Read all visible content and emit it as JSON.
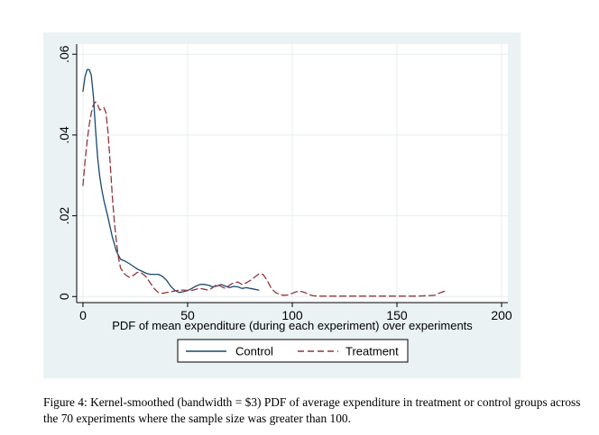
{
  "chart_data": {
    "type": "line",
    "title": "",
    "xlabel": "PDF of mean expenditure (during each experiment) over experiments",
    "ylabel": "",
    "xlim": [
      -3,
      203
    ],
    "ylim": [
      -0.0015,
      0.0625
    ],
    "x_ticks": [
      0,
      50,
      100,
      150,
      200
    ],
    "x_tick_labels": [
      "0",
      "50",
      "100",
      "150",
      "200"
    ],
    "y_ticks": [
      0,
      0.02,
      0.04,
      0.06
    ],
    "y_tick_labels": [
      "0",
      ".02",
      ".04",
      ".06"
    ],
    "grid": true,
    "legend_position": "bottom",
    "series": [
      {
        "name": "Control",
        "color": "#1a476f",
        "dash": "solid",
        "x": [
          0,
          1,
          2,
          3,
          4,
          5,
          6,
          7,
          8,
          9,
          10,
          12,
          14,
          16,
          18,
          20,
          22,
          24,
          26,
          28,
          30,
          32,
          34,
          36,
          38,
          40,
          42,
          44,
          46,
          48,
          50,
          52,
          54,
          56,
          58,
          60,
          62,
          64,
          66,
          68,
          70,
          72,
          74,
          76,
          78,
          80,
          82,
          84
        ],
        "values": [
          0.0508,
          0.0545,
          0.0562,
          0.0562,
          0.0548,
          0.0495,
          0.0415,
          0.0345,
          0.0298,
          0.0265,
          0.0238,
          0.0195,
          0.0148,
          0.0112,
          0.0092,
          0.0088,
          0.0082,
          0.0075,
          0.0068,
          0.0063,
          0.0058,
          0.0055,
          0.0055,
          0.0055,
          0.005,
          0.004,
          0.0025,
          0.0015,
          0.001,
          0.0012,
          0.0015,
          0.002,
          0.0026,
          0.003,
          0.003,
          0.0028,
          0.0024,
          0.0026,
          0.003,
          0.0026,
          0.0022,
          0.0025,
          0.0024,
          0.002,
          0.0022,
          0.002,
          0.0018,
          0.0016
        ]
      },
      {
        "name": "Treatment",
        "color": "#90353b",
        "dash": "dashed",
        "x": [
          0,
          1,
          2,
          3,
          4,
          5,
          6,
          7,
          8,
          9,
          10,
          11,
          12,
          13,
          14,
          15,
          16,
          17,
          18,
          20,
          22,
          24,
          26,
          28,
          30,
          32,
          34,
          36,
          38,
          40,
          42,
          44,
          46,
          48,
          50,
          52,
          54,
          56,
          58,
          60,
          62,
          64,
          66,
          68,
          70,
          72,
          74,
          76,
          78,
          80,
          82,
          84,
          86,
          88,
          90,
          92,
          94,
          96,
          98,
          100,
          102,
          104,
          106,
          108,
          110,
          112,
          114,
          116,
          120,
          130,
          140,
          150,
          160,
          168,
          170,
          172,
          174
        ],
        "values": [
          0.0275,
          0.0335,
          0.0385,
          0.0425,
          0.0455,
          0.0475,
          0.0482,
          0.0475,
          0.0462,
          0.0465,
          0.0468,
          0.0455,
          0.0405,
          0.033,
          0.025,
          0.0185,
          0.0135,
          0.0095,
          0.007,
          0.0055,
          0.0048,
          0.0052,
          0.006,
          0.0058,
          0.005,
          0.0035,
          0.002,
          0.001,
          0.0008,
          0.001,
          0.0012,
          0.0014,
          0.0016,
          0.0016,
          0.0015,
          0.0015,
          0.0018,
          0.002,
          0.0018,
          0.0016,
          0.0022,
          0.003,
          0.0025,
          0.002,
          0.0028,
          0.0034,
          0.0036,
          0.003,
          0.0034,
          0.004,
          0.0048,
          0.0056,
          0.0055,
          0.004,
          0.002,
          0.001,
          0.0005,
          0.0003,
          0.0004,
          0.0008,
          0.0012,
          0.0013,
          0.001,
          0.0005,
          0.0002,
          0.0001,
          0.0001,
          0.0001,
          0.0001,
          0.0001,
          0.0001,
          0.0001,
          0.0001,
          0.0003,
          0.0008,
          0.0012,
          0.0015
        ]
      }
    ]
  },
  "caption": "Figure 4: Kernel-smoothed (bandwidth = $3) PDF of average expenditure in treatment or control groups across the 70 experiments where the sample size was greater than 100."
}
